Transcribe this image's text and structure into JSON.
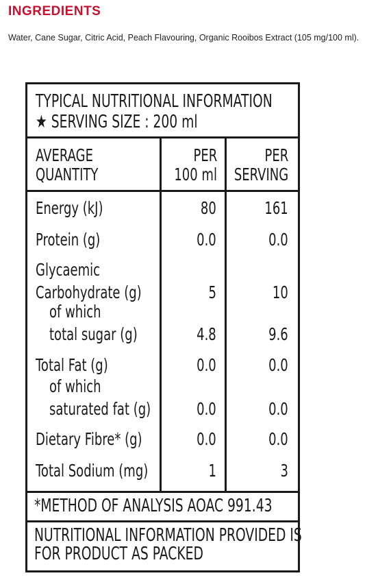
{
  "ingredients": {
    "title": "INGREDIENTS",
    "text": "Water, Cane Sugar, Citric Acid, Peach Flavouring, Organic Rooibos Extract (105 mg/100 ml)."
  },
  "label": {
    "title": "TYPICAL NUTRITIONAL INFORMATION",
    "serving": "★ SERVING SIZE : 200 ml",
    "headers": [
      [
        "AVERAGE",
        "QUANTITY"
      ],
      [
        "PER",
        "100 ml"
      ],
      [
        "PER",
        "SERVING"
      ]
    ],
    "rows": [
      {
        "name": [
          "Energy (kJ)"
        ],
        "per_100ml": "80",
        "per_serving": "161"
      },
      {
        "name": [
          "Protein (g)"
        ],
        "per_100ml": "0.0",
        "per_serving": "0.0"
      },
      {
        "name": [
          "Glycaemic",
          "Carbohydrate (g)"
        ],
        "per_100ml": "5",
        "per_serving": "10"
      },
      {
        "name": [
          "of which",
          "total sugar (g)"
        ],
        "per_100ml": "4.8",
        "per_serving": "9.6"
      },
      {
        "name": [
          "Total Fat (g)"
        ],
        "per_100ml": "0.0",
        "per_serving": "0.0"
      },
      {
        "name": [
          "of which",
          "saturated fat (g)"
        ],
        "per_100ml": "0.0",
        "per_serving": "0.0"
      },
      {
        "name": [
          "Dietary Fibre* (g)"
        ],
        "per_100ml": "0.0",
        "per_serving": "0.0"
      },
      {
        "name": [
          "Total Sodium (mg)"
        ],
        "per_100ml": "1",
        "per_serving": "3"
      }
    ],
    "footnote": "*METHOD OF ANALYSIS AOAC 991.43",
    "note": [
      "NUTRITIONAL INFORMATION PROVIDED IS",
      "FOR PRODUCT AS PACKED"
    ]
  }
}
